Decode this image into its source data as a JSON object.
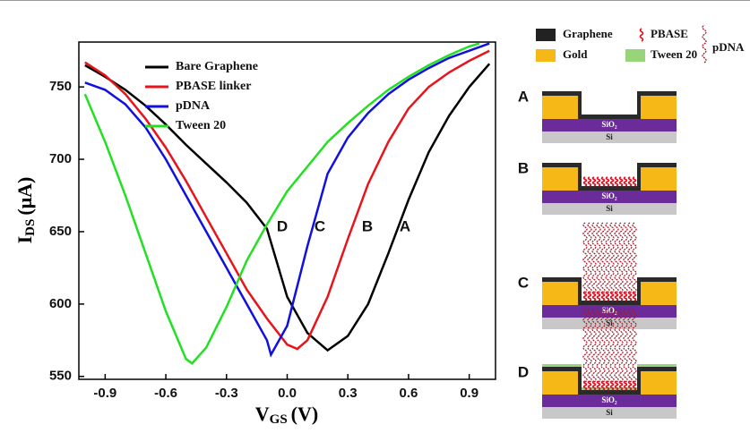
{
  "chart_data": {
    "type": "line",
    "xlabel_main": "V",
    "xlabel_sub": "GS",
    "xlabel_unit": "(V)",
    "ylabel_main": "I",
    "ylabel_sub": "DS",
    "ylabel_unit": "(μA)",
    "xlim": [
      -1.03,
      1.03
    ],
    "ylim": [
      548,
      781
    ],
    "xticks": [
      -0.9,
      -0.6,
      -0.3,
      {
        "value": 0,
        "label": "0.0"
      },
      0.3,
      0.6,
      0.9
    ],
    "yticks": [
      550,
      600,
      650,
      700,
      750
    ],
    "legend": "upper left",
    "annotations": [
      "D",
      "C",
      "B",
      "A"
    ],
    "series": [
      {
        "name": "Bare Graphene",
        "color": "#000000",
        "x": [
          -1.0,
          -0.9,
          -0.8,
          -0.7,
          -0.6,
          -0.5,
          -0.4,
          -0.3,
          -0.2,
          -0.1,
          0.0,
          0.1,
          0.2,
          0.3,
          0.4,
          0.5,
          0.6,
          0.7,
          0.8,
          0.9,
          1.0
        ],
        "values": [
          765,
          757,
          748,
          737,
          724,
          710,
          697,
          684,
          670,
          652,
          605,
          580,
          568,
          578,
          600,
          635,
          672,
          705,
          730,
          750,
          766
        ]
      },
      {
        "name": "PBASE linker",
        "color": "#e8141b",
        "x": [
          -1.0,
          -0.9,
          -0.8,
          -0.7,
          -0.6,
          -0.5,
          -0.4,
          -0.3,
          -0.2,
          -0.1,
          0.0,
          0.05,
          0.1,
          0.2,
          0.3,
          0.4,
          0.5,
          0.6,
          0.7,
          0.8,
          0.9,
          1.0
        ],
        "values": [
          767,
          758,
          745,
          728,
          708,
          685,
          660,
          635,
          610,
          590,
          572,
          569,
          575,
          605,
          645,
          683,
          712,
          735,
          750,
          760,
          768,
          775
        ]
      },
      {
        "name": "pDNA",
        "color": "#1010e0",
        "x": [
          -1.0,
          -0.9,
          -0.8,
          -0.7,
          -0.6,
          -0.5,
          -0.4,
          -0.3,
          -0.2,
          -0.1,
          -0.08,
          0.0,
          0.1,
          0.2,
          0.3,
          0.4,
          0.5,
          0.6,
          0.7,
          0.8,
          0.9,
          1.0
        ],
        "values": [
          753,
          748,
          738,
          722,
          700,
          675,
          650,
          625,
          600,
          575,
          565,
          585,
          640,
          690,
          715,
          732,
          745,
          755,
          763,
          770,
          775,
          780
        ]
      },
      {
        "name": "Tween 20",
        "color": "#22e022",
        "x": [
          -1.0,
          -0.9,
          -0.8,
          -0.7,
          -0.6,
          -0.5,
          -0.47,
          -0.4,
          -0.3,
          -0.2,
          -0.1,
          0.0,
          0.1,
          0.2,
          0.3,
          0.4,
          0.5,
          0.6,
          0.7,
          0.8,
          0.9,
          0.95
        ],
        "values": [
          745,
          712,
          675,
          635,
          595,
          562,
          559,
          570,
          598,
          630,
          655,
          678,
          695,
          712,
          725,
          737,
          748,
          757,
          765,
          772,
          778,
          780
        ]
      }
    ]
  },
  "schematic": {
    "legend": {
      "graphene": "Graphene",
      "pbase": "PBASE",
      "pdna": "pDNA",
      "gold": "Gold",
      "tween": "Tween 20"
    },
    "panels": [
      "A",
      "B",
      "C",
      "D"
    ],
    "sio2": "SiO₂",
    "si": "Si"
  }
}
